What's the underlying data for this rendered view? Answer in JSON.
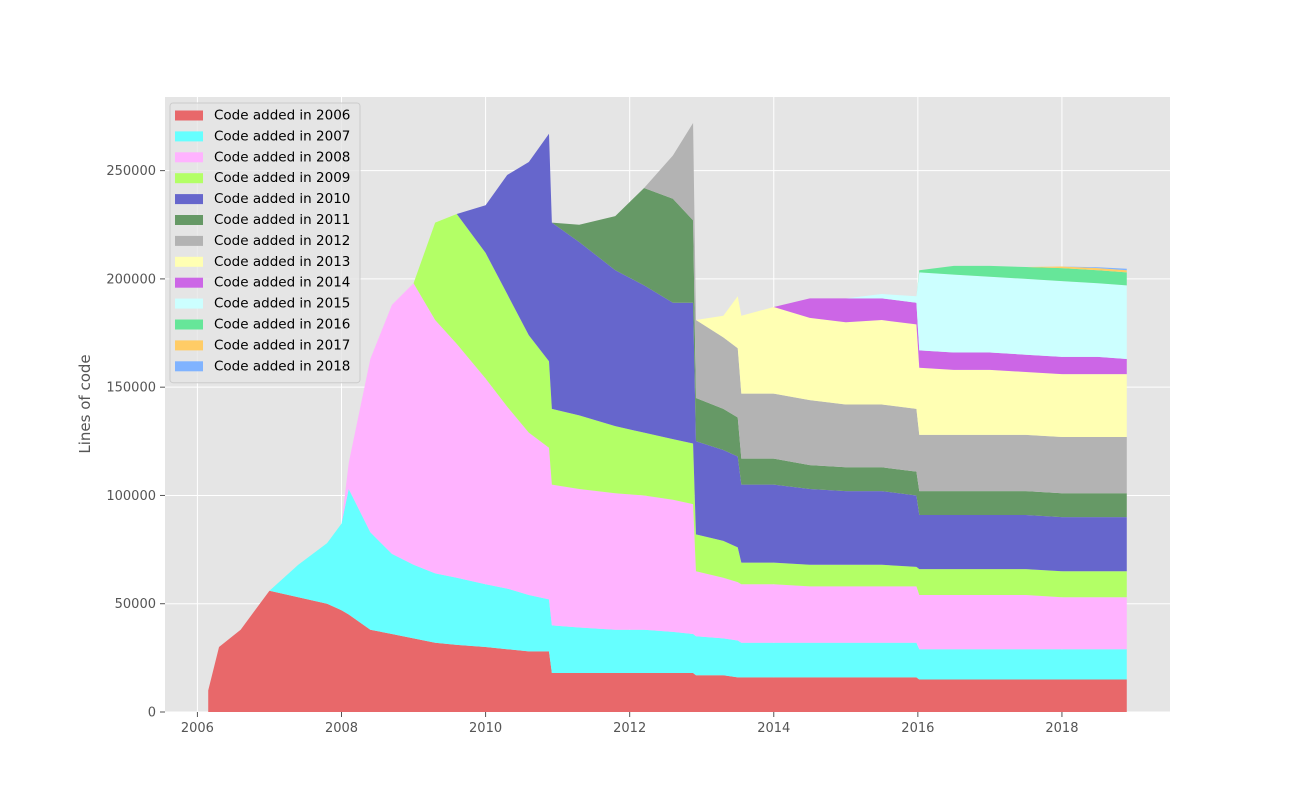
{
  "chart_data": {
    "type": "area",
    "stacked": true,
    "title": "",
    "xlabel": "",
    "ylabel": "Lines of code",
    "xlim": [
      2005.55,
      2019.5
    ],
    "ylim": [
      0,
      284000
    ],
    "xticks": [
      2006,
      2008,
      2010,
      2012,
      2014,
      2016,
      2018
    ],
    "yticks": [
      0,
      50000,
      100000,
      150000,
      200000,
      250000
    ],
    "grid": true,
    "legend_position": "top-left",
    "x": [
      2006.15,
      2006.3,
      2006.6,
      2007.0,
      2007.4,
      2007.8,
      2008.0,
      2008.1,
      2008.4,
      2008.7,
      2009.0,
      2009.3,
      2009.6,
      2010.0,
      2010.3,
      2010.6,
      2010.88,
      2010.92,
      2011.3,
      2011.8,
      2012.2,
      2012.6,
      2012.88,
      2012.92,
      2013.3,
      2013.5,
      2013.55,
      2014.0,
      2014.5,
      2015.0,
      2015.5,
      2015.98,
      2016.02,
      2016.5,
      2017.0,
      2017.5,
      2018.0,
      2018.5,
      2018.9
    ],
    "series": [
      {
        "name": "Code added in 2006",
        "color": "#e8686a",
        "values": [
          10000,
          30000,
          38000,
          56000,
          53000,
          50000,
          47000,
          45000,
          38000,
          36000,
          34000,
          32000,
          31000,
          30000,
          29000,
          28000,
          28000,
          18000,
          18000,
          18000,
          18000,
          18000,
          18000,
          17000,
          17000,
          16000,
          16000,
          16000,
          16000,
          16000,
          16000,
          16000,
          15000,
          15000,
          15000,
          15000,
          15000,
          15000,
          15000
        ]
      },
      {
        "name": "Code added in 2007",
        "color": "#66ffff",
        "values": [
          0,
          0,
          0,
          0,
          15000,
          28000,
          40000,
          58000,
          45000,
          37000,
          34000,
          32000,
          31000,
          29000,
          28000,
          26000,
          24000,
          22000,
          21000,
          20000,
          20000,
          19000,
          18000,
          18000,
          17000,
          17000,
          16000,
          16000,
          16000,
          16000,
          16000,
          16000,
          14000,
          14000,
          14000,
          14000,
          14000,
          14000,
          14000
        ]
      },
      {
        "name": "Code added in 2008",
        "color": "#ffb3ff",
        "values": [
          0,
          0,
          0,
          0,
          0,
          0,
          0,
          12000,
          80000,
          115000,
          130000,
          117000,
          108000,
          95000,
          84000,
          75000,
          70000,
          65000,
          64000,
          63000,
          62000,
          61000,
          60000,
          30000,
          28000,
          27000,
          27000,
          27000,
          26000,
          26000,
          26000,
          26000,
          25000,
          25000,
          25000,
          25000,
          24000,
          24000,
          24000
        ]
      },
      {
        "name": "Code added in 2009",
        "color": "#b3ff66",
        "values": [
          0,
          0,
          0,
          0,
          0,
          0,
          0,
          0,
          0,
          0,
          0,
          45000,
          60000,
          58000,
          52000,
          45000,
          40000,
          35000,
          34000,
          31000,
          29000,
          28000,
          28000,
          17000,
          17000,
          16000,
          10000,
          10000,
          10000,
          10000,
          10000,
          9000,
          12000,
          12000,
          12000,
          12000,
          12000,
          12000,
          12000
        ]
      },
      {
        "name": "Code added in 2010",
        "color": "#6666cc",
        "values": [
          0,
          0,
          0,
          0,
          0,
          0,
          0,
          0,
          0,
          0,
          0,
          0,
          0,
          22000,
          55000,
          80000,
          105000,
          86000,
          80000,
          72000,
          68000,
          63000,
          65000,
          43000,
          42000,
          42000,
          36000,
          36000,
          35000,
          34000,
          34000,
          33000,
          25000,
          25000,
          25000,
          25000,
          25000,
          25000,
          25000
        ]
      },
      {
        "name": "Code added in 2011",
        "color": "#669966",
        "values": [
          0,
          0,
          0,
          0,
          0,
          0,
          0,
          0,
          0,
          0,
          0,
          0,
          0,
          0,
          0,
          0,
          0,
          0,
          8000,
          25000,
          45000,
          48000,
          38000,
          20000,
          19000,
          18000,
          12000,
          12000,
          11000,
          11000,
          11000,
          11000,
          11000,
          11000,
          11000,
          11000,
          11000,
          11000,
          11000
        ]
      },
      {
        "name": "Code added in 2012",
        "color": "#b3b3b3",
        "values": [
          0,
          0,
          0,
          0,
          0,
          0,
          0,
          0,
          0,
          0,
          0,
          0,
          0,
          0,
          0,
          0,
          0,
          0,
          0,
          0,
          0,
          20000,
          45000,
          36000,
          33000,
          32000,
          30000,
          30000,
          30000,
          29000,
          29000,
          29000,
          26000,
          26000,
          26000,
          26000,
          26000,
          26000,
          26000
        ]
      },
      {
        "name": "Code added in 2013",
        "color": "#ffffb3",
        "values": [
          0,
          0,
          0,
          0,
          0,
          0,
          0,
          0,
          0,
          0,
          0,
          0,
          0,
          0,
          0,
          0,
          0,
          0,
          0,
          0,
          0,
          0,
          0,
          0,
          10000,
          24000,
          36000,
          40000,
          38000,
          38000,
          39000,
          39000,
          31000,
          30000,
          30000,
          29000,
          29000,
          29000,
          29000
        ]
      },
      {
        "name": "Code added in 2014",
        "color": "#cc66e6",
        "values": [
          0,
          0,
          0,
          0,
          0,
          0,
          0,
          0,
          0,
          0,
          0,
          0,
          0,
          0,
          0,
          0,
          0,
          0,
          0,
          0,
          0,
          0,
          0,
          0,
          0,
          0,
          0,
          0,
          9000,
          11000,
          10000,
          10000,
          8000,
          8000,
          8000,
          8000,
          8000,
          8000,
          7000
        ]
      },
      {
        "name": "Code added in 2015",
        "color": "#ccffff",
        "values": [
          0,
          0,
          0,
          0,
          0,
          0,
          0,
          0,
          0,
          0,
          0,
          0,
          0,
          0,
          0,
          0,
          0,
          0,
          0,
          0,
          0,
          0,
          0,
          0,
          0,
          0,
          0,
          0,
          0,
          0,
          2000,
          3000,
          36000,
          36000,
          35000,
          35000,
          35000,
          34000,
          34000
        ]
      },
      {
        "name": "Code added in 2016",
        "color": "#66e699",
        "values": [
          0,
          0,
          0,
          0,
          0,
          0,
          0,
          0,
          0,
          0,
          0,
          0,
          0,
          0,
          0,
          0,
          0,
          0,
          0,
          0,
          0,
          0,
          0,
          0,
          0,
          0,
          0,
          0,
          0,
          0,
          0,
          0,
          1000,
          4000,
          5000,
          5500,
          6000,
          6000,
          6000
        ]
      },
      {
        "name": "Code added in 2017",
        "color": "#ffcc66",
        "values": [
          0,
          0,
          0,
          0,
          0,
          0,
          0,
          0,
          0,
          0,
          0,
          0,
          0,
          0,
          0,
          0,
          0,
          0,
          0,
          0,
          0,
          0,
          0,
          0,
          0,
          0,
          0,
          0,
          0,
          0,
          0,
          0,
          0,
          0,
          0,
          0,
          700,
          1000,
          1000
        ]
      },
      {
        "name": "Code added in 2018",
        "color": "#80b3ff",
        "values": [
          0,
          0,
          0,
          0,
          0,
          0,
          0,
          0,
          0,
          0,
          0,
          0,
          0,
          0,
          0,
          0,
          0,
          0,
          0,
          0,
          0,
          0,
          0,
          0,
          0,
          0,
          0,
          0,
          0,
          0,
          0,
          0,
          0,
          0,
          0,
          0,
          0,
          400,
          700
        ]
      }
    ]
  }
}
